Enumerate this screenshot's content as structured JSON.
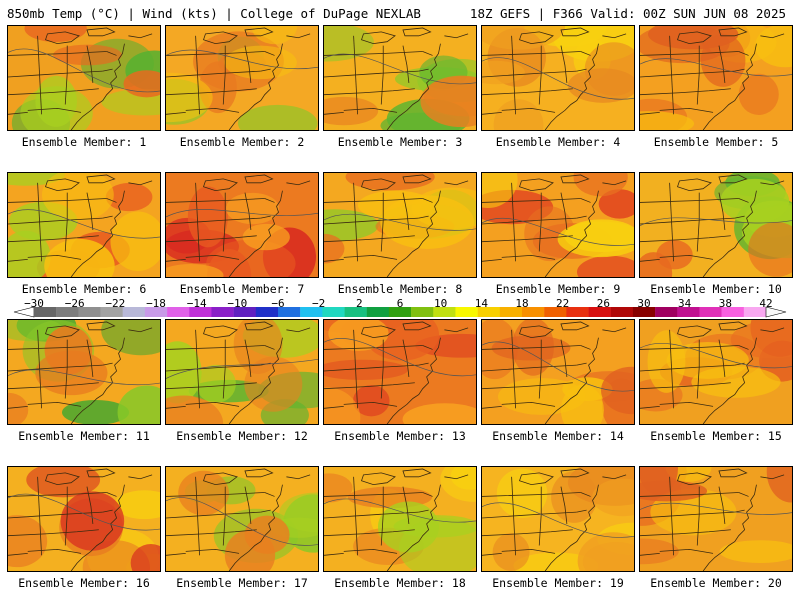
{
  "header": {
    "left": "850mb Temp (°C) | Wind (kts) | College of DuPage NEXLAB",
    "right": "18Z GEFS | F366 Valid: 00Z SUN JUN 08 2025"
  },
  "colorbar": {
    "tick_labels": [
      "−30",
      "−26",
      "−22",
      "−18",
      "−14",
      "−10",
      "−6",
      "−2",
      "2",
      "6",
      "10",
      "14",
      "18",
      "22",
      "26",
      "30",
      "34",
      "38",
      "42"
    ],
    "colors": [
      "#676767",
      "#7d7d7d",
      "#8f8f8f",
      "#a3a3a3",
      "#b8b8d8",
      "#c89ae8",
      "#e060e8",
      "#c030d8",
      "#8a20c8",
      "#6020c0",
      "#2030c8",
      "#2070e0",
      "#20c0f0",
      "#20d8c0",
      "#18c080",
      "#10a040",
      "#30a010",
      "#80c010",
      "#c0e010",
      "#f8f800",
      "#f8d000",
      "#f8b000",
      "#f89000",
      "#f06000",
      "#e83010",
      "#d81010",
      "#b00808",
      "#880000",
      "#a00060",
      "#c01090",
      "#e030b8",
      "#f860e0",
      "#f8a8f0"
    ]
  },
  "panels": [
    {
      "label": "Ensemble Member: 1",
      "base": "#f0a020",
      "blobs": [
        "#58b030",
        "#a8d020",
        "#e86a20"
      ]
    },
    {
      "label": "Ensemble Member: 2",
      "base": "#f4a824",
      "blobs": [
        "#88c828",
        "#e87a20",
        "#f8c010"
      ]
    },
    {
      "label": "Ensemble Member: 3",
      "base": "#f4b020",
      "blobs": [
        "#90c828",
        "#60b430",
        "#e88020"
      ]
    },
    {
      "label": "Ensemble Member: 4",
      "base": "#f6b020",
      "blobs": [
        "#f8d010",
        "#e88a20",
        "#f0a020"
      ]
    },
    {
      "label": "Ensemble Member: 5",
      "base": "#f4a020",
      "blobs": [
        "#e87020",
        "#f8c010",
        "#e06020"
      ]
    },
    {
      "label": "Ensemble Member: 6",
      "base": "#f4a420",
      "blobs": [
        "#e85a20",
        "#a8d020",
        "#f8c010"
      ]
    },
    {
      "label": "Ensemble Member: 7",
      "base": "#ec7a20",
      "blobs": [
        "#d82820",
        "#e85a20",
        "#f8a020"
      ]
    },
    {
      "label": "Ensemble Member: 8",
      "base": "#f4a820",
      "blobs": [
        "#90c828",
        "#e87020",
        "#f8c010"
      ]
    },
    {
      "label": "Ensemble Member: 9",
      "base": "#f4a020",
      "blobs": [
        "#e04020",
        "#e87020",
        "#f8d010"
      ]
    },
    {
      "label": "Ensemble Member: 10",
      "base": "#f2b020",
      "blobs": [
        "#60b430",
        "#a8d020",
        "#e86a20"
      ]
    },
    {
      "label": "Ensemble Member: 11",
      "base": "#f4a820",
      "blobs": [
        "#48a830",
        "#88c828",
        "#e87a20"
      ]
    },
    {
      "label": "Ensemble Member: 12",
      "base": "#f4a820",
      "blobs": [
        "#60b430",
        "#a8d020",
        "#e88020"
      ]
    },
    {
      "label": "Ensemble Member: 13",
      "base": "#ec7a20",
      "blobs": [
        "#e04a20",
        "#e86020",
        "#f8a020"
      ]
    },
    {
      "label": "Ensemble Member: 14",
      "base": "#f4a020",
      "blobs": [
        "#e87020",
        "#f8c010",
        "#e06020"
      ]
    },
    {
      "label": "Ensemble Member: 15",
      "base": "#f0a020",
      "blobs": [
        "#e04a20",
        "#e86a20",
        "#f8c010"
      ]
    },
    {
      "label": "Ensemble Member: 16",
      "base": "#f4b020",
      "blobs": [
        "#f8d010",
        "#e87a20",
        "#d83020"
      ]
    },
    {
      "label": "Ensemble Member: 17",
      "base": "#f4b020",
      "blobs": [
        "#88c828",
        "#a8d020",
        "#e88020"
      ]
    },
    {
      "label": "Ensemble Member: 18",
      "base": "#f4b020",
      "blobs": [
        "#f8d010",
        "#e87a20",
        "#a8d020"
      ]
    },
    {
      "label": "Ensemble Member: 19",
      "base": "#f6b420",
      "blobs": [
        "#f8d010",
        "#e88a20",
        "#f0a020"
      ]
    },
    {
      "label": "Ensemble Member: 20",
      "base": "#f0a020",
      "blobs": [
        "#e87020",
        "#f8c010",
        "#e06020"
      ]
    }
  ]
}
